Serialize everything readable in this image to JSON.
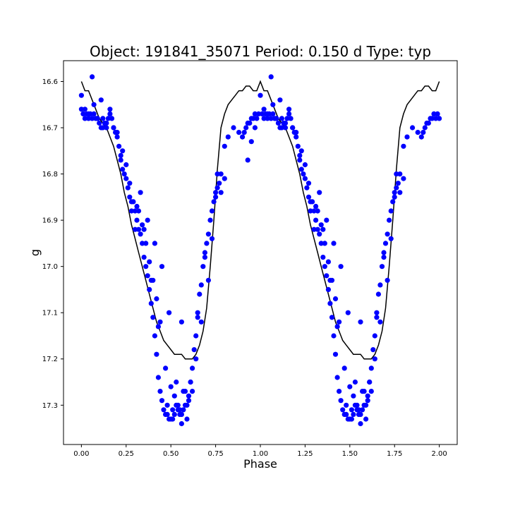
{
  "chart_data": {
    "type": "scatter",
    "title": "Object: 191841_35071    Period: 0.150 d    Type: typ",
    "xlabel": "Phase",
    "ylabel": "g",
    "xlim": [
      -0.1,
      2.1
    ],
    "ylim": [
      17.385,
      16.555
    ],
    "y_inverted": true,
    "grid": false,
    "xticks": [
      0.0,
      0.25,
      0.5,
      0.75,
      1.0,
      1.25,
      1.5,
      1.75,
      2.0
    ],
    "xtick_labels": [
      "0.00",
      "0.25",
      "0.50",
      "0.75",
      "1.00",
      "1.25",
      "1.50",
      "1.75",
      "2.00"
    ],
    "yticks": [
      16.6,
      16.7,
      16.8,
      16.9,
      17.0,
      17.1,
      17.2,
      17.3
    ],
    "ytick_labels": [
      "16.6",
      "16.7",
      "16.8",
      "16.9",
      "17.0",
      "17.1",
      "17.2",
      "17.3"
    ],
    "colors": {
      "points": "#0000ff",
      "model": "#000000"
    },
    "series": [
      {
        "kind": "scatter",
        "x": [
          0.0,
          0.01,
          0.02,
          0.03,
          0.04,
          0.05,
          0.06,
          0.07,
          0.08,
          0.09,
          0.1,
          0.11,
          0.12,
          0.13,
          0.14,
          0.15,
          0.16,
          0.17,
          0.18,
          0.19,
          0.2,
          0.21,
          0.22,
          0.23,
          0.24,
          0.25,
          0.26,
          0.27,
          0.28,
          0.29,
          0.3,
          0.31,
          0.32,
          0.33,
          0.34,
          0.35,
          0.36,
          0.37,
          0.38,
          0.39,
          0.4,
          0.41,
          0.42,
          0.43,
          0.44,
          0.45,
          0.46,
          0.47,
          0.48,
          0.49,
          0.5,
          0.51,
          0.52,
          0.53,
          0.54,
          0.55,
          0.56,
          0.57,
          0.58,
          0.59,
          0.6,
          0.61,
          0.62,
          0.63,
          0.64,
          0.65,
          0.66,
          0.67,
          0.68,
          0.69,
          0.7,
          0.71,
          0.72,
          0.73,
          0.74,
          0.75,
          0.76,
          0.77,
          0.78,
          0.8,
          0.82,
          0.85,
          0.88,
          0.9,
          0.91,
          0.92,
          0.93,
          0.94,
          0.95,
          0.96,
          0.97,
          0.98,
          0.99,
          0.06,
          0.07,
          0.11,
          0.16,
          0.2,
          0.23,
          0.28,
          0.3,
          0.32,
          0.34,
          0.36,
          0.38,
          0.4,
          0.42,
          0.44,
          0.47,
          0.5,
          0.52,
          0.54,
          0.56,
          0.58,
          0.6,
          0.62,
          0.56,
          0.65,
          0.67,
          0.76,
          0.78,
          0.8,
          0.69,
          0.73,
          0.75,
          0.71,
          0.64,
          0.0,
          0.02,
          0.04,
          0.12,
          0.18,
          0.25,
          0.33,
          0.37,
          0.41,
          0.45,
          0.49,
          0.53,
          0.57,
          0.61,
          0.55,
          0.51,
          0.59,
          0.48,
          0.43,
          0.39,
          0.35,
          0.31,
          0.27,
          0.22,
          0.14,
          0.09,
          1.0,
          1.01,
          1.02,
          1.03,
          1.04,
          1.05,
          1.06,
          1.07,
          1.08,
          1.09,
          1.1,
          1.11,
          1.12,
          1.13,
          1.14,
          1.15,
          1.16,
          1.17,
          1.18,
          1.19,
          1.2,
          1.21,
          1.22,
          1.23,
          1.24,
          1.25,
          1.26,
          1.27,
          1.28,
          1.29,
          1.3,
          1.31,
          1.32,
          1.33,
          1.34,
          1.35,
          1.36,
          1.37,
          1.38,
          1.39,
          1.4,
          1.41,
          1.42,
          1.43,
          1.44,
          1.45,
          1.46,
          1.47,
          1.48,
          1.49,
          1.5,
          1.51,
          1.52,
          1.53,
          1.54,
          1.55,
          1.56,
          1.57,
          1.58,
          1.59,
          1.6,
          1.61,
          1.62,
          1.63,
          1.64,
          1.65,
          1.66,
          1.67,
          1.68,
          1.69,
          1.7,
          1.71,
          1.72,
          1.73,
          1.74,
          1.75,
          1.76,
          1.77,
          1.78,
          1.8,
          1.82,
          1.85,
          1.88,
          1.9,
          1.91,
          1.92,
          1.93,
          1.94,
          1.95,
          1.96,
          1.97,
          1.98,
          1.99,
          2.0,
          1.06,
          1.07,
          1.11,
          1.16,
          1.2,
          1.23,
          1.28,
          1.3,
          1.32,
          1.34,
          1.36,
          1.38,
          1.4,
          1.42,
          1.44,
          1.47,
          1.5,
          1.52,
          1.54,
          1.56,
          1.58,
          1.6,
          1.62,
          1.56,
          1.65,
          1.67,
          1.76,
          1.78,
          1.8,
          1.69,
          1.73,
          1.75,
          1.71,
          1.64,
          1.02,
          1.04,
          1.12,
          1.18,
          1.25,
          1.33,
          1.37,
          1.41,
          1.45,
          1.49,
          1.53,
          1.57,
          1.61,
          1.55,
          1.51,
          1.59,
          1.48,
          1.43,
          1.39,
          1.35,
          1.31,
          1.27,
          1.22,
          1.14,
          1.09,
          0.95,
          0.97,
          0.93
        ],
        "y": [
          16.63,
          16.67,
          16.68,
          16.67,
          16.68,
          16.67,
          16.68,
          16.67,
          16.68,
          16.68,
          16.69,
          16.7,
          16.7,
          16.69,
          16.7,
          16.68,
          16.67,
          16.68,
          16.7,
          16.71,
          16.72,
          16.74,
          16.77,
          16.79,
          16.8,
          16.81,
          16.83,
          16.85,
          16.86,
          16.86,
          16.88,
          16.9,
          16.92,
          16.93,
          16.95,
          16.98,
          17.0,
          17.02,
          17.05,
          17.08,
          17.11,
          17.15,
          17.19,
          17.24,
          17.27,
          17.29,
          17.31,
          17.32,
          17.32,
          17.33,
          17.33,
          17.33,
          17.32,
          17.3,
          17.31,
          17.32,
          17.32,
          17.31,
          17.3,
          17.3,
          17.28,
          17.25,
          17.22,
          17.18,
          17.15,
          17.1,
          17.06,
          17.04,
          17.0,
          16.98,
          16.95,
          16.93,
          16.9,
          16.88,
          16.86,
          16.84,
          16.83,
          16.82,
          16.8,
          16.74,
          16.72,
          16.7,
          16.71,
          16.72,
          16.71,
          16.7,
          16.69,
          16.69,
          16.68,
          16.68,
          16.67,
          16.68,
          16.67,
          16.59,
          16.65,
          16.64,
          16.66,
          16.71,
          16.75,
          16.88,
          16.92,
          16.88,
          16.91,
          16.95,
          16.99,
          17.03,
          17.07,
          17.12,
          17.22,
          17.26,
          17.28,
          17.3,
          17.12,
          17.27,
          17.29,
          17.27,
          17.34,
          17.11,
          17.12,
          16.8,
          16.84,
          16.81,
          16.97,
          16.94,
          16.85,
          17.03,
          17.2,
          16.66,
          16.66,
          16.67,
          16.68,
          16.7,
          16.78,
          16.84,
          16.9,
          16.95,
          17.0,
          17.1,
          17.25,
          17.27,
          17.25,
          17.31,
          17.31,
          17.33,
          17.3,
          17.13,
          17.03,
          16.92,
          16.87,
          16.82,
          16.76,
          16.69,
          16.68,
          16.63,
          16.67,
          16.68,
          16.67,
          16.68,
          16.67,
          16.68,
          16.67,
          16.68,
          16.68,
          16.69,
          16.7,
          16.7,
          16.69,
          16.7,
          16.68,
          16.67,
          16.68,
          16.7,
          16.71,
          16.72,
          16.74,
          16.77,
          16.79,
          16.8,
          16.81,
          16.83,
          16.85,
          16.86,
          16.86,
          16.88,
          16.9,
          16.92,
          16.93,
          16.95,
          16.98,
          17.0,
          17.02,
          17.05,
          17.08,
          17.11,
          17.15,
          17.19,
          17.24,
          17.27,
          17.29,
          17.31,
          17.32,
          17.32,
          17.33,
          17.33,
          17.33,
          17.32,
          17.3,
          17.31,
          17.32,
          17.32,
          17.31,
          17.3,
          17.3,
          17.28,
          17.25,
          17.22,
          17.18,
          17.15,
          17.1,
          17.06,
          17.04,
          17.0,
          16.98,
          16.95,
          16.93,
          16.9,
          16.88,
          16.86,
          16.84,
          16.83,
          16.82,
          16.8,
          16.74,
          16.72,
          16.7,
          16.71,
          16.72,
          16.71,
          16.7,
          16.69,
          16.69,
          16.68,
          16.68,
          16.67,
          16.68,
          16.67,
          16.68,
          16.59,
          16.65,
          16.64,
          16.66,
          16.71,
          16.75,
          16.88,
          16.92,
          16.88,
          16.91,
          16.95,
          16.99,
          17.03,
          17.07,
          17.12,
          17.22,
          17.26,
          17.28,
          17.3,
          17.12,
          17.27,
          17.29,
          17.27,
          17.34,
          17.11,
          17.12,
          16.8,
          16.84,
          16.81,
          16.97,
          16.94,
          16.85,
          17.03,
          17.2,
          16.66,
          16.67,
          16.68,
          16.7,
          16.78,
          16.84,
          16.9,
          16.95,
          17.0,
          17.1,
          17.25,
          17.27,
          17.25,
          17.31,
          17.31,
          17.33,
          17.3,
          17.13,
          17.03,
          16.92,
          16.87,
          16.82,
          16.76,
          16.69,
          16.68,
          16.73,
          16.7,
          16.77
        ]
      },
      {
        "kind": "line",
        "x": [
          0.0,
          0.02,
          0.04,
          0.06,
          0.08,
          0.1,
          0.12,
          0.14,
          0.16,
          0.18,
          0.2,
          0.22,
          0.24,
          0.26,
          0.28,
          0.3,
          0.32,
          0.34,
          0.36,
          0.38,
          0.4,
          0.42,
          0.44,
          0.46,
          0.48,
          0.5,
          0.52,
          0.54,
          0.56,
          0.58,
          0.6,
          0.62,
          0.64,
          0.66,
          0.68,
          0.7,
          0.72,
          0.74,
          0.76,
          0.78,
          0.8,
          0.82,
          0.84,
          0.86,
          0.88,
          0.9,
          0.92,
          0.94,
          0.96,
          0.98,
          1.0,
          1.02,
          1.04,
          1.06,
          1.08,
          1.1,
          1.12,
          1.14,
          1.16,
          1.18,
          1.2,
          1.22,
          1.24,
          1.26,
          1.28,
          1.3,
          1.32,
          1.34,
          1.36,
          1.38,
          1.4,
          1.42,
          1.44,
          1.46,
          1.48,
          1.5,
          1.52,
          1.54,
          1.56,
          1.58,
          1.6,
          1.62,
          1.64,
          1.66,
          1.68,
          1.7,
          1.72,
          1.74,
          1.76,
          1.78,
          1.8,
          1.82,
          1.84,
          1.86,
          1.88,
          1.9,
          1.92,
          1.94,
          1.96,
          1.98,
          2.0
        ],
        "y": [
          16.6,
          16.62,
          16.62,
          16.64,
          16.66,
          16.68,
          16.69,
          16.7,
          16.72,
          16.74,
          16.77,
          16.8,
          16.84,
          16.87,
          16.91,
          16.94,
          16.97,
          17.0,
          17.03,
          17.06,
          17.09,
          17.12,
          17.14,
          17.16,
          17.17,
          17.18,
          17.19,
          17.19,
          17.19,
          17.2,
          17.2,
          17.2,
          17.19,
          17.17,
          17.14,
          17.09,
          17.0,
          16.9,
          16.79,
          16.7,
          16.67,
          16.65,
          16.64,
          16.63,
          16.62,
          16.62,
          16.61,
          16.61,
          16.62,
          16.62,
          16.6,
          16.62,
          16.62,
          16.64,
          16.66,
          16.68,
          16.69,
          16.7,
          16.72,
          16.74,
          16.77,
          16.8,
          16.84,
          16.87,
          16.91,
          16.94,
          16.97,
          17.0,
          17.03,
          17.06,
          17.09,
          17.12,
          17.14,
          17.16,
          17.17,
          17.18,
          17.19,
          17.19,
          17.19,
          17.2,
          17.2,
          17.2,
          17.19,
          17.17,
          17.14,
          17.09,
          17.0,
          16.9,
          16.79,
          16.7,
          16.67,
          16.65,
          16.64,
          16.63,
          16.62,
          16.62,
          16.61,
          16.61,
          16.62,
          16.62,
          16.6
        ]
      }
    ]
  }
}
